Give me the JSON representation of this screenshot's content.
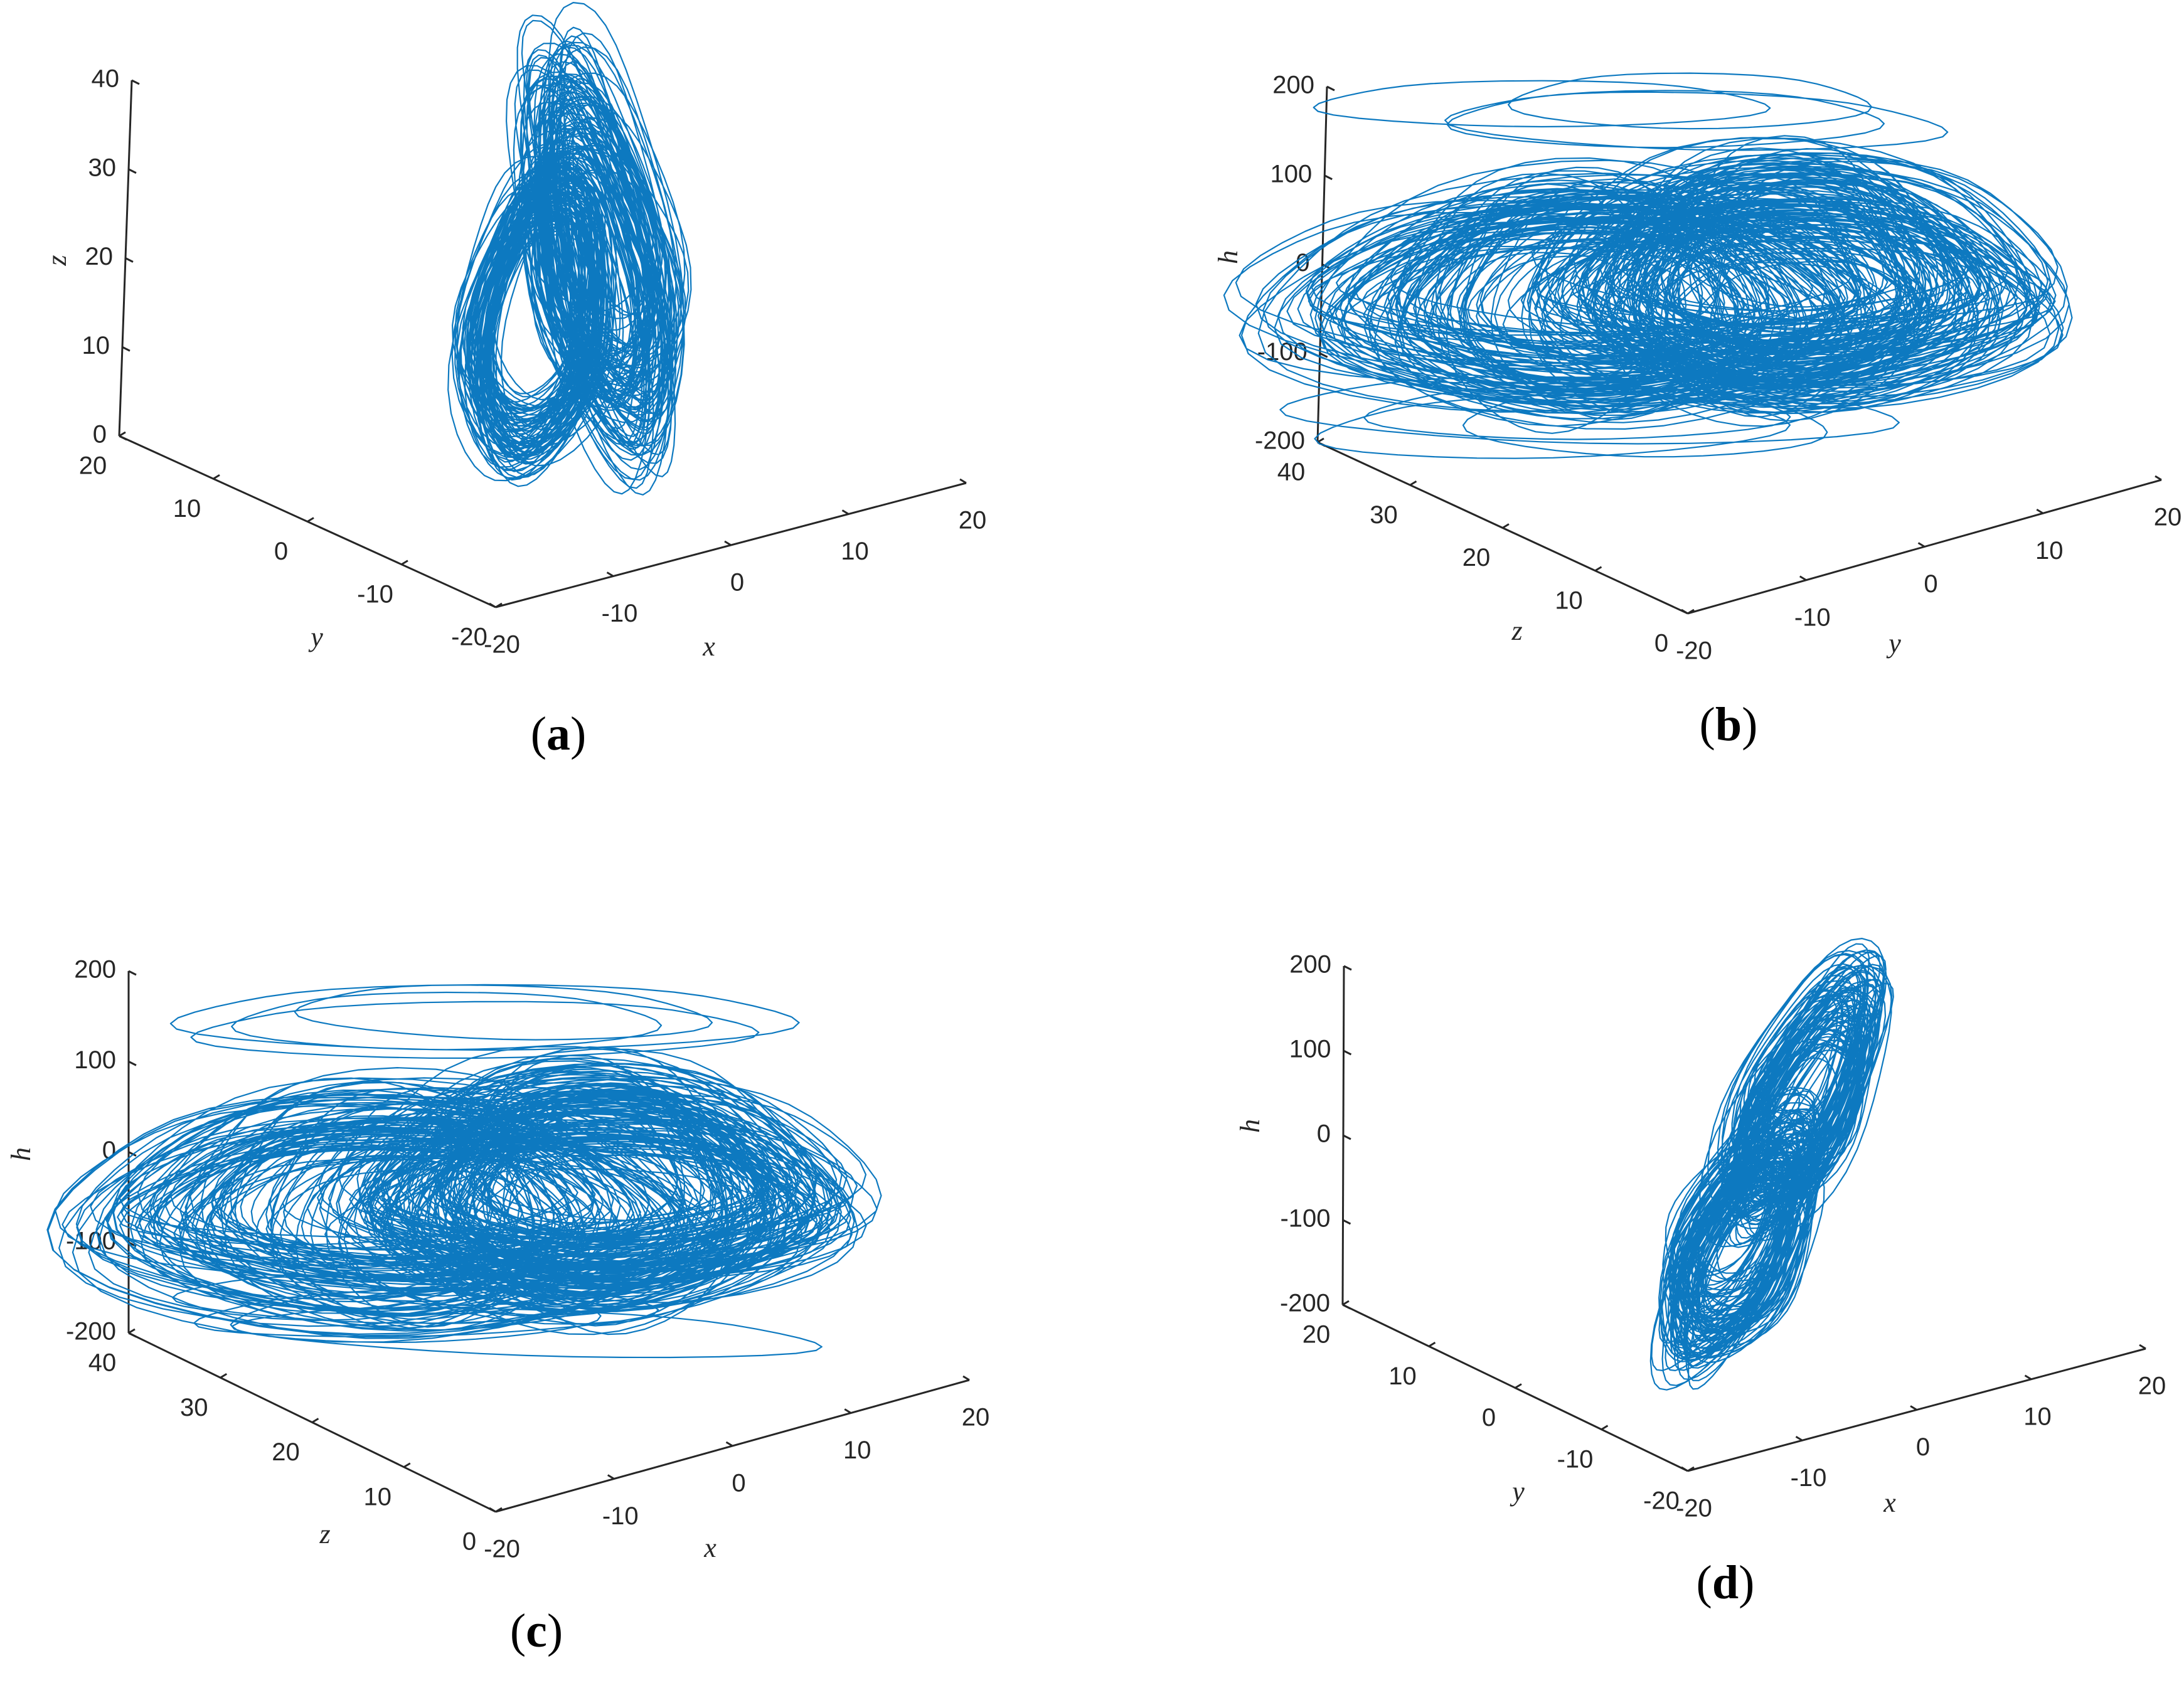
{
  "colors": {
    "trajectory": "#0072BD",
    "axis": "#262626",
    "background": "#ffffff"
  },
  "chart_data": [
    {
      "type": "line",
      "panel": "a",
      "caption": "a",
      "projection": "3d",
      "axes": [
        {
          "name": "x",
          "label": "x",
          "range": [
            -20,
            20
          ],
          "ticks": [
            "-20",
            "-10",
            "0",
            "10",
            "20"
          ]
        },
        {
          "name": "y",
          "label": "y",
          "range": [
            -20,
            20
          ],
          "ticks": [
            "20",
            "10",
            "0",
            "-10",
            "-20"
          ]
        },
        {
          "name": "z",
          "label": "z",
          "range": [
            0,
            40
          ],
          "ticks": [
            "0",
            "10",
            "20",
            "30",
            "40"
          ]
        }
      ],
      "series": [
        {
          "name": "chaotic trajectory",
          "shape": "heart-shaped attractor",
          "center": [
            0,
            0,
            17
          ],
          "extent": [
            9,
            9,
            17
          ]
        }
      ]
    },
    {
      "type": "line",
      "panel": "b",
      "caption": "b",
      "projection": "3d",
      "axes": [
        {
          "name": "y",
          "label": "y",
          "range": [
            -20,
            20
          ],
          "ticks": [
            "-20",
            "-10",
            "0",
            "10",
            "20"
          ]
        },
        {
          "name": "z",
          "label": "z",
          "range": [
            0,
            40
          ],
          "ticks": [
            "40",
            "30",
            "20",
            "10",
            "0"
          ]
        },
        {
          "name": "h",
          "label": "h",
          "range": [
            -200,
            200
          ],
          "ticks": [
            "-200",
            "-100",
            "0",
            "100",
            "200"
          ]
        }
      ],
      "series": [
        {
          "name": "chaotic trajectory",
          "shape": "broad double-scroll attractor",
          "center": [
            0,
            18,
            -30
          ],
          "extent": [
            20,
            20,
            190
          ]
        }
      ]
    },
    {
      "type": "line",
      "panel": "c",
      "caption": "c",
      "projection": "3d",
      "axes": [
        {
          "name": "x",
          "label": "x",
          "range": [
            -20,
            20
          ],
          "ticks": [
            "-20",
            "-10",
            "0",
            "10",
            "20"
          ]
        },
        {
          "name": "z",
          "label": "z",
          "range": [
            0,
            40
          ],
          "ticks": [
            "40",
            "30",
            "20",
            "10",
            "0"
          ]
        },
        {
          "name": "h",
          "label": "h",
          "range": [
            -200,
            200
          ],
          "ticks": [
            "-200",
            "-100",
            "0",
            "100",
            "200"
          ]
        }
      ],
      "series": [
        {
          "name": "chaotic trajectory",
          "shape": "broad attractor",
          "center": [
            0,
            18,
            -30
          ],
          "extent": [
            20,
            20,
            190
          ]
        }
      ]
    },
    {
      "type": "line",
      "panel": "d",
      "caption": "d",
      "projection": "3d",
      "axes": [
        {
          "name": "x",
          "label": "x",
          "range": [
            -20,
            20
          ],
          "ticks": [
            "-20",
            "-10",
            "0",
            "10",
            "20"
          ]
        },
        {
          "name": "y",
          "label": "y",
          "range": [
            -20,
            20
          ],
          "ticks": [
            "20",
            "10",
            "0",
            "-10",
            "-20"
          ]
        },
        {
          "name": "h",
          "label": "h",
          "range": [
            -200,
            200
          ],
          "ticks": [
            "-200",
            "-100",
            "0",
            "100",
            "200"
          ]
        }
      ],
      "series": [
        {
          "name": "chaotic trajectory",
          "shape": "diagonal elongated attractor",
          "center": [
            0,
            0,
            -20
          ],
          "extent": [
            10,
            10,
            220
          ]
        }
      ]
    }
  ]
}
